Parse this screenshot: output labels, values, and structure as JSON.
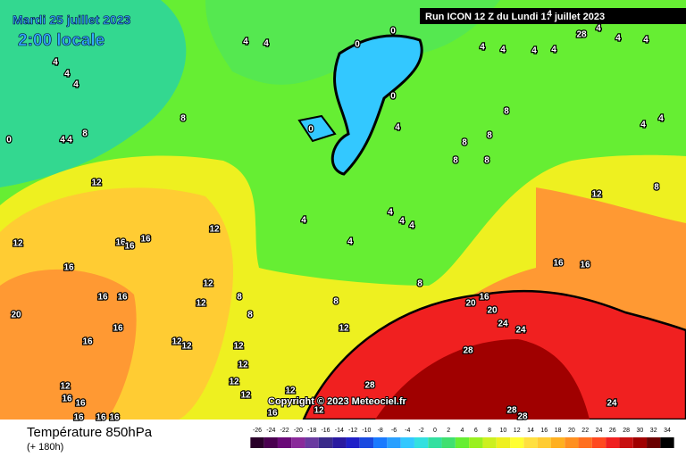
{
  "header": {
    "date": "Mardi 25 juillet 2023",
    "time": "2:00 locale",
    "run": "Run ICON 12 Z du Lundi 17 juillet 2023",
    "copyright": "Copyright © 2023 Meteociel.fr"
  },
  "footer": {
    "title": "Température 850hPa",
    "lead": "(+ 180h)"
  },
  "legend": {
    "ticks": [
      -26,
      -24,
      -22,
      -20,
      -18,
      -16,
      -14,
      -12,
      -10,
      -8,
      -6,
      -4,
      -2,
      0,
      2,
      4,
      6,
      8,
      10,
      12,
      14,
      16,
      18,
      20,
      22,
      24,
      26,
      28,
      30,
      32,
      34
    ],
    "colors": [
      "#2a002a",
      "#4a0050",
      "#6a0a78",
      "#8a2a9a",
      "#6a3aa0",
      "#3a2a8a",
      "#2a1aa0",
      "#2020c8",
      "#1a4ae0",
      "#1a7aff",
      "#2aa0ff",
      "#33c8ff",
      "#33e0e0",
      "#33e0a0",
      "#40e070",
      "#66ee33",
      "#99f020",
      "#ccf020",
      "#eef020",
      "#ffff33",
      "#ffe040",
      "#ffcc33",
      "#ffb020",
      "#ff9020",
      "#ff7020",
      "#ff4a20",
      "#f02020",
      "#c81010",
      "#a00000",
      "#6a0000",
      "#000000"
    ]
  },
  "contours": [
    4,
    4,
    0,
    0,
    0,
    0,
    4,
    8,
    8,
    4,
    4,
    4,
    4,
    4,
    0,
    8,
    8,
    8,
    8,
    8,
    12,
    12,
    12,
    16,
    16,
    16,
    16,
    16,
    16,
    16,
    16,
    20,
    12,
    12,
    8,
    8,
    8,
    8,
    4,
    4,
    4,
    4,
    4,
    12,
    8,
    16,
    16,
    16,
    20,
    20,
    24,
    24,
    28,
    28,
    28,
    28,
    24,
    12,
    12,
    12,
    12,
    12,
    12,
    12,
    12,
    12,
    16,
    16,
    16,
    16,
    16,
    16,
    12,
    28,
    4,
    4,
    4,
    4,
    4,
    4,
    4,
    4,
    4,
    4
  ]
}
